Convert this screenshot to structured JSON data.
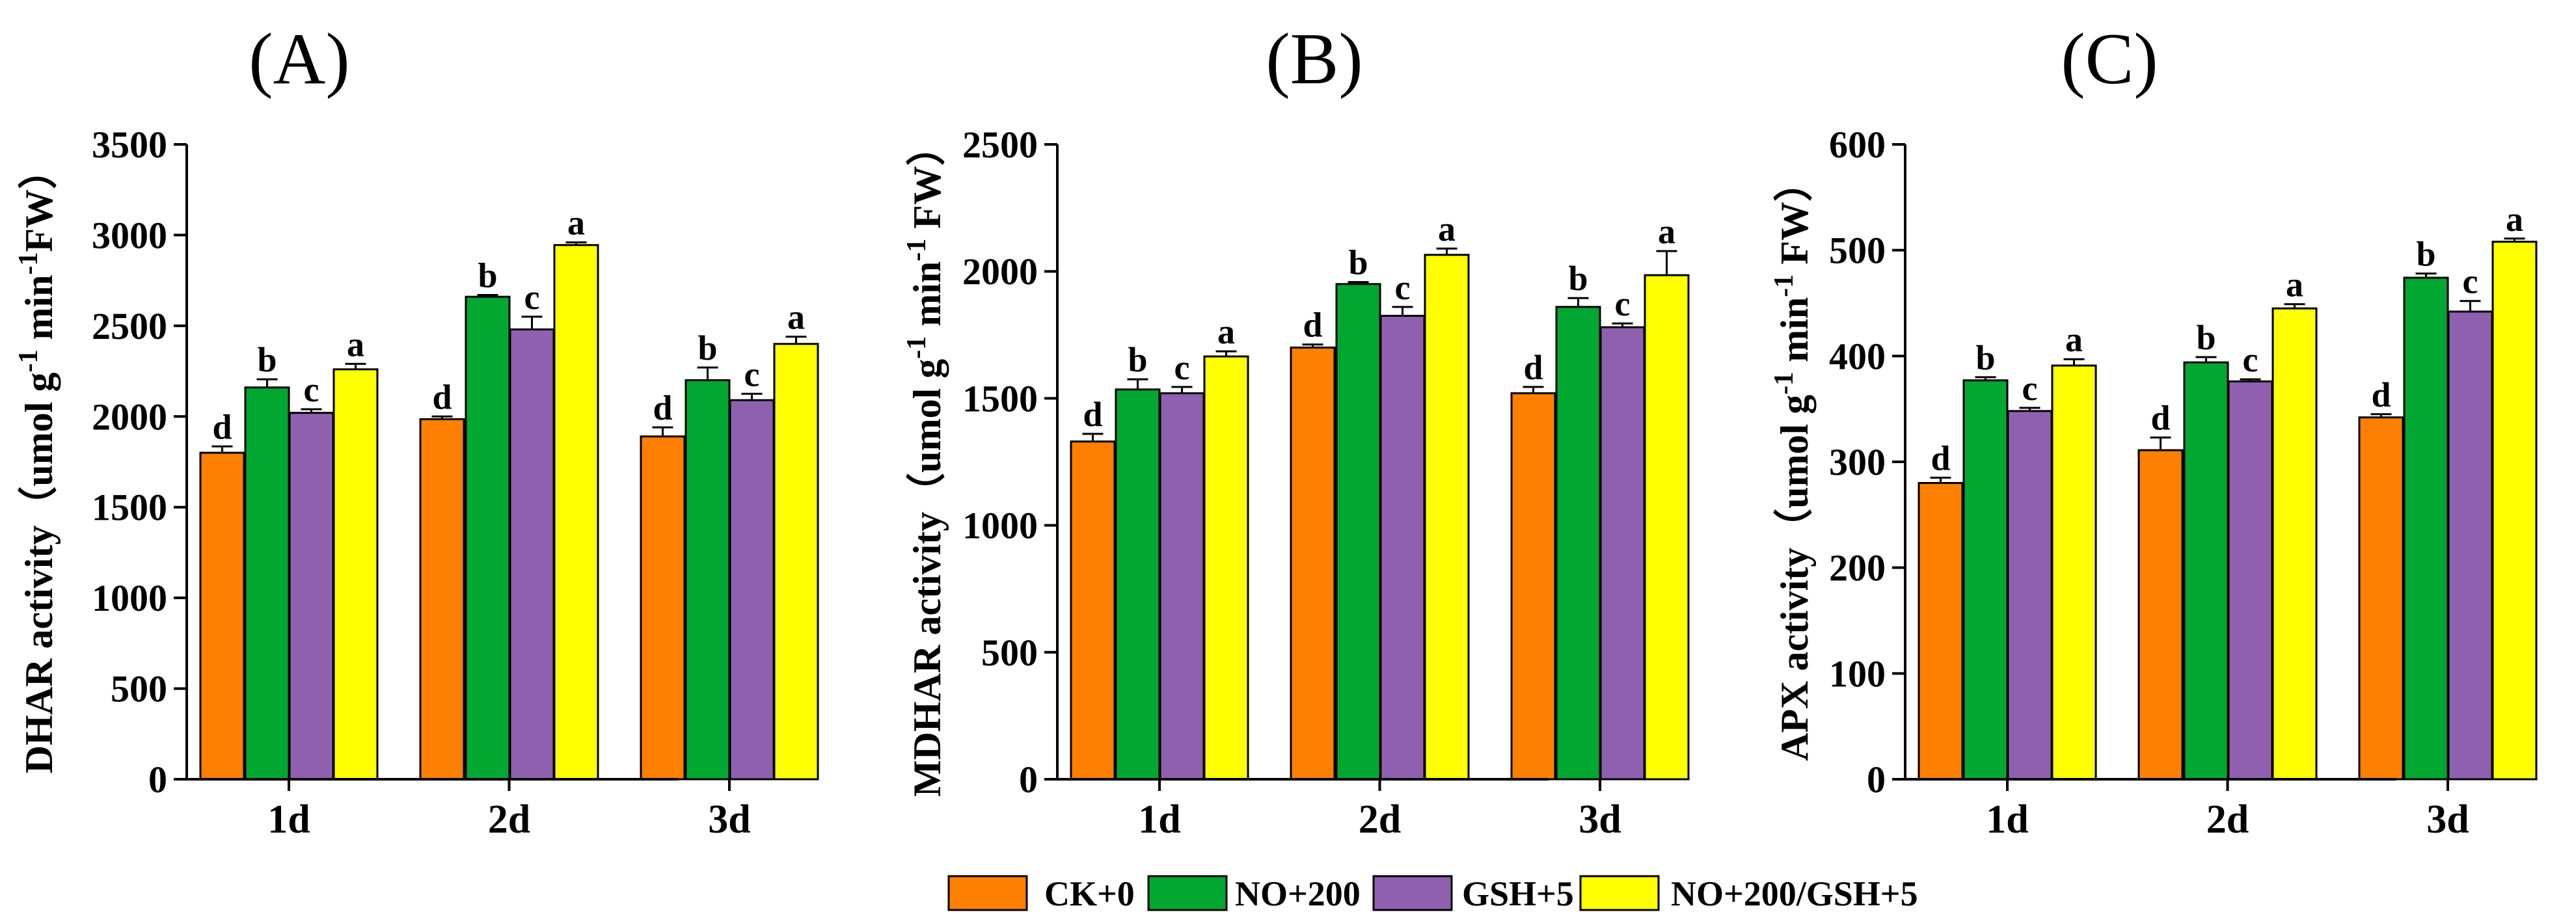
{
  "chart_data": [
    {
      "type": "bar",
      "panel_label": "(A)",
      "ylabel": "DHAR activity（umol g-1 min-1FW）",
      "ylabel_parts": [
        "DHAR activity（umol g",
        "-1",
        " min",
        "-1",
        "FW）"
      ],
      "categories": [
        "1d",
        "2d",
        "3d"
      ],
      "ylim": [
        0,
        3500
      ],
      "yticks": [
        "0",
        "500",
        "1000",
        "1500",
        "2000",
        "2500",
        "3000",
        "3500"
      ],
      "series": [
        {
          "name": "CK+0",
          "values": [
            1800,
            1985,
            1890
          ],
          "errors": [
            35,
            15,
            50
          ],
          "letters": [
            "d",
            "d",
            "d"
          ]
        },
        {
          "name": "NO+200",
          "values": [
            2160,
            2660,
            2200
          ],
          "errors": [
            45,
            10,
            70
          ],
          "letters": [
            "b",
            "b",
            "b"
          ]
        },
        {
          "name": "GSH+5",
          "values": [
            2020,
            2480,
            2090
          ],
          "errors": [
            20,
            70,
            35
          ],
          "letters": [
            "c",
            "c",
            "c"
          ]
        },
        {
          "name": "NO+200/GSH+5",
          "values": [
            2260,
            2945,
            2400
          ],
          "errors": [
            30,
            15,
            40
          ],
          "letters": [
            "a",
            "a",
            "a"
          ]
        }
      ]
    },
    {
      "type": "bar",
      "panel_label": "(B)",
      "ylabel": "MDHAR activity（umol g-1 min-1 FW）",
      "ylabel_parts": [
        "MDHAR activity（umol g",
        "-1",
        " min",
        "-1",
        " FW）"
      ],
      "categories": [
        "1d",
        "2d",
        "3d"
      ],
      "ylim": [
        0,
        2500
      ],
      "yticks": [
        "0",
        "500",
        "1000",
        "1500",
        "2000",
        "2500"
      ],
      "series": [
        {
          "name": "CK+0",
          "values": [
            1330,
            1700,
            1520
          ],
          "errors": [
            30,
            12,
            25
          ],
          "letters": [
            "d",
            "d",
            "d"
          ]
        },
        {
          "name": "NO+200",
          "values": [
            1535,
            1950,
            1860
          ],
          "errors": [
            40,
            8,
            35
          ],
          "letters": [
            "b",
            "b",
            "b"
          ]
        },
        {
          "name": "GSH+5",
          "values": [
            1520,
            1825,
            1780
          ],
          "errors": [
            25,
            35,
            15
          ],
          "letters": [
            "c",
            "c",
            "c"
          ]
        },
        {
          "name": "NO+200/GSH+5",
          "values": [
            1665,
            2065,
            1985
          ],
          "errors": [
            20,
            25,
            95
          ],
          "letters": [
            "a",
            "a",
            "a"
          ]
        }
      ]
    },
    {
      "type": "bar",
      "panel_label": "(C)",
      "ylabel": "APX activity（umol g-1 min-1 FW）",
      "ylabel_parts": [
        "APX activity（umol g",
        "-1",
        " min",
        "-1",
        "  FW）"
      ],
      "categories": [
        "1d",
        "2d",
        "3d"
      ],
      "ylim": [
        0,
        600
      ],
      "yticks": [
        "0",
        "100",
        "200",
        "300",
        "400",
        "500",
        "600"
      ],
      "series": [
        {
          "name": "CK+0",
          "values": [
            280,
            311,
            342
          ],
          "errors": [
            5,
            12,
            3
          ],
          "letters": [
            "d",
            "d",
            "d"
          ]
        },
        {
          "name": "NO+200",
          "values": [
            377,
            394,
            474
          ],
          "errors": [
            3,
            5,
            4
          ],
          "letters": [
            "b",
            "b",
            "b"
          ]
        },
        {
          "name": "GSH+5",
          "values": [
            348,
            376,
            442
          ],
          "errors": [
            3,
            2,
            10
          ],
          "letters": [
            "c",
            "c",
            "c"
          ]
        },
        {
          "name": "NO+200/GSH+5",
          "values": [
            391,
            445,
            508
          ],
          "errors": [
            6,
            4,
            3
          ],
          "letters": [
            "a",
            "a",
            "a"
          ]
        }
      ]
    }
  ],
  "legend": {
    "items": [
      {
        "label": "CK+0",
        "color": "#FF7F00"
      },
      {
        "label": "NO+200",
        "color": "#00A832"
      },
      {
        "label": "GSH+5",
        "color": "#9060B0"
      },
      {
        "label": "NO+200/GSH+5",
        "color": "#FFFF00"
      }
    ]
  },
  "colors": {
    "series": [
      "#FF7F00",
      "#00A832",
      "#9060B0",
      "#FFFF00"
    ],
    "axis": "#000000"
  }
}
